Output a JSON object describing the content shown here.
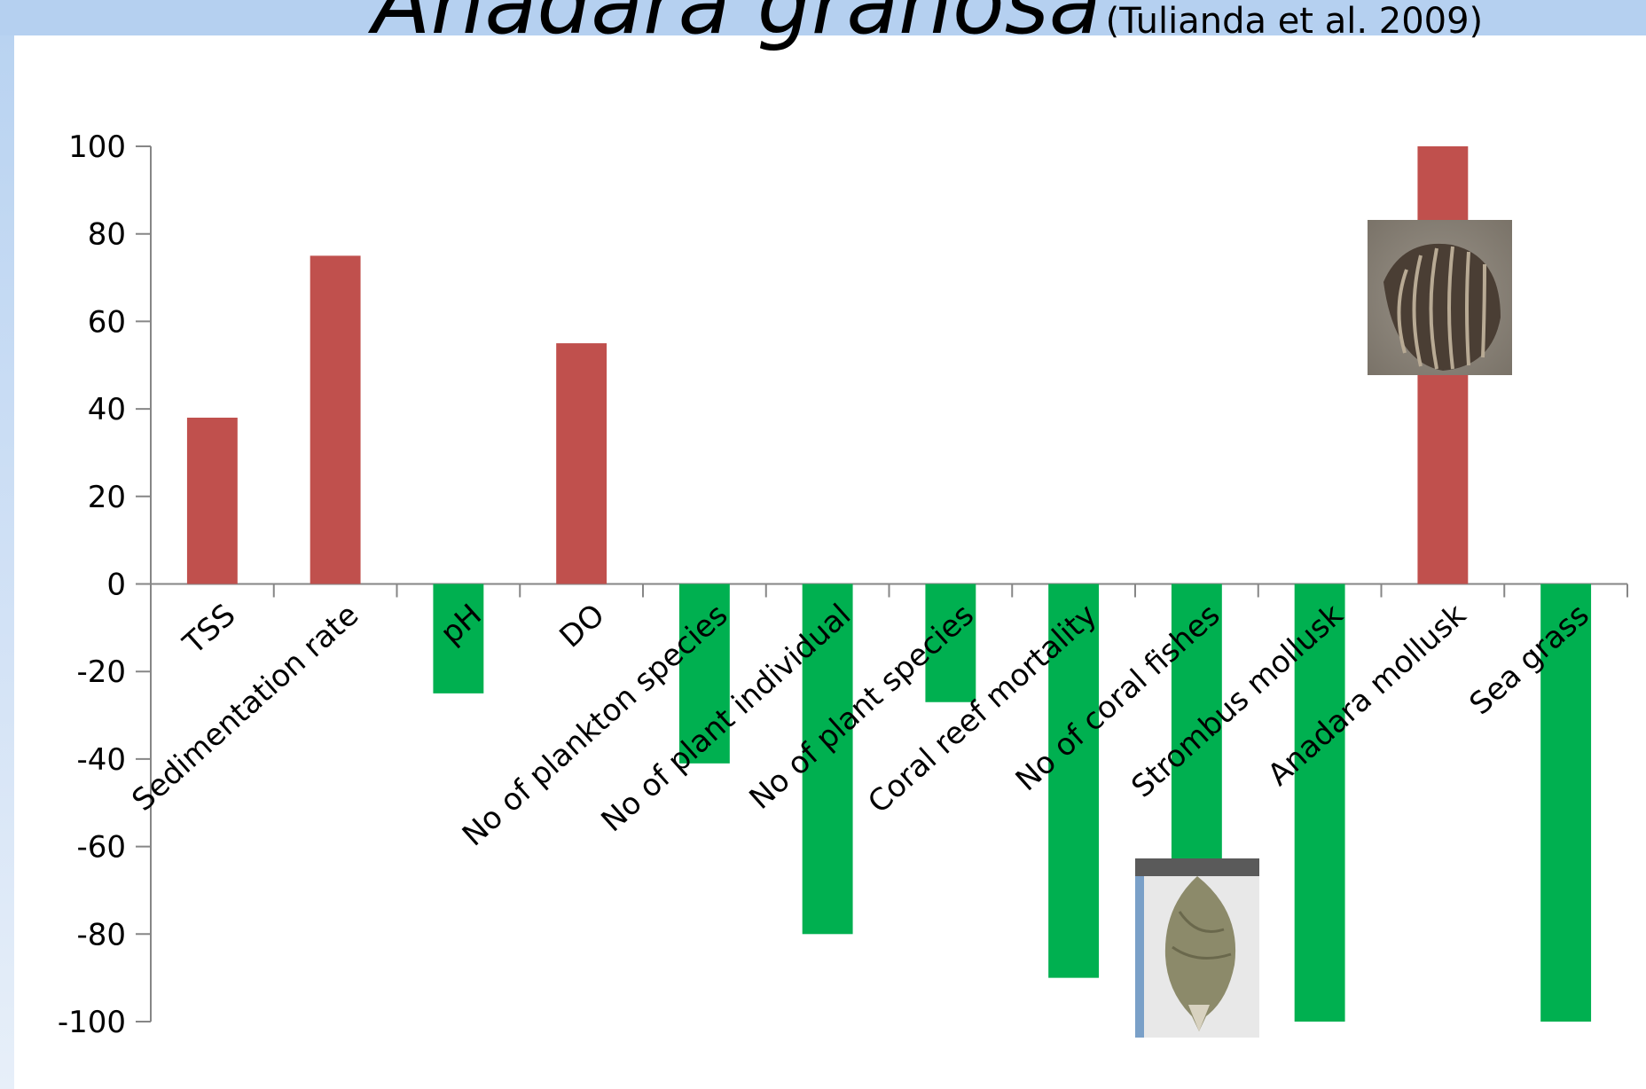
{
  "slide": {
    "title": "Anadara granosa",
    "citation": "(Tulianda et al. 2009)"
  },
  "chart_data": {
    "type": "bar",
    "title": "",
    "xlabel": "",
    "ylabel": "",
    "ylim": [
      -100,
      100
    ],
    "yticks": [
      100,
      80,
      60,
      40,
      20,
      0,
      -20,
      -40,
      -60,
      -80,
      -100
    ],
    "grid": false,
    "legend": "none",
    "categories": [
      "TSS",
      "Sedimentation rate",
      "pH",
      "DO",
      "No of plankton species",
      "No of plant individual",
      "No of plant species",
      "Coral reef mortality",
      "No of coral fishes",
      "Strombus mollusk",
      "Anadara mollusk",
      "Sea grass"
    ],
    "values": [
      38,
      75,
      -25,
      55,
      -41,
      -80,
      -27,
      -90,
      -64,
      -100,
      100,
      -100
    ],
    "colors": {
      "positive": "#c0504d",
      "negative": "#00b050"
    }
  },
  "images": {
    "anadara_shell": "anadara-shell-photo",
    "strombus_shell": "strombus-shell-photo"
  }
}
